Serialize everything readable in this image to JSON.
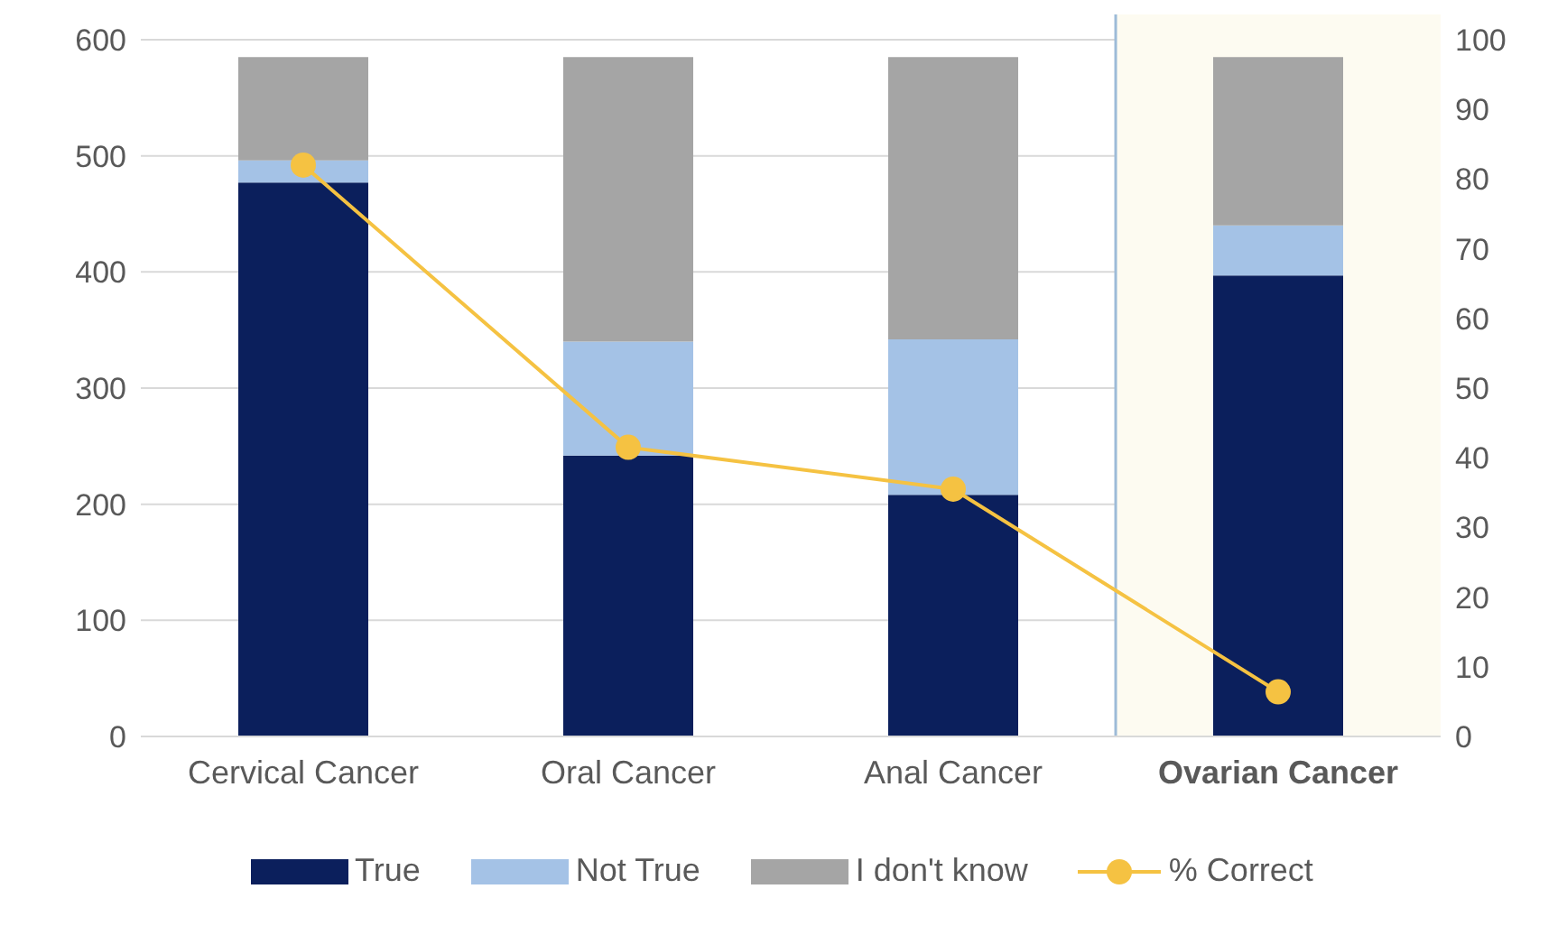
{
  "chart_data": {
    "type": "bar",
    "stacked": true,
    "categories": [
      "Cervical Cancer",
      "Oral Cancer",
      "Anal Cancer",
      "Ovarian Cancer"
    ],
    "series": [
      {
        "name": "True",
        "color": "#0b1f5c",
        "values": [
          477,
          242,
          208,
          397
        ]
      },
      {
        "name": "Not True",
        "color": "#a4c2e6",
        "values": [
          19,
          98,
          134,
          43
        ]
      },
      {
        "name": "I don't know",
        "color": "#a5a5a5",
        "values": [
          89,
          245,
          243,
          145
        ]
      },
      {
        "name": "% Correct",
        "type": "line",
        "axis": "y2",
        "color": "#f5c242",
        "marker": "circle",
        "values": [
          82,
          41.5,
          35.5,
          6.4
        ]
      }
    ],
    "ylim": [
      0,
      600
    ],
    "yticks": [
      0,
      100,
      200,
      300,
      400,
      500,
      600
    ],
    "y2lim": [
      0,
      100
    ],
    "y2ticks": [
      0,
      10,
      20,
      30,
      40,
      50,
      60,
      70,
      80,
      90,
      100
    ],
    "bands": [
      {
        "axis": "x",
        "from": "Ovarian Cancer",
        "to": "Ovarian Cancer",
        "color": "#fdfbf1"
      }
    ],
    "grid": "y",
    "legend": "bottom"
  }
}
